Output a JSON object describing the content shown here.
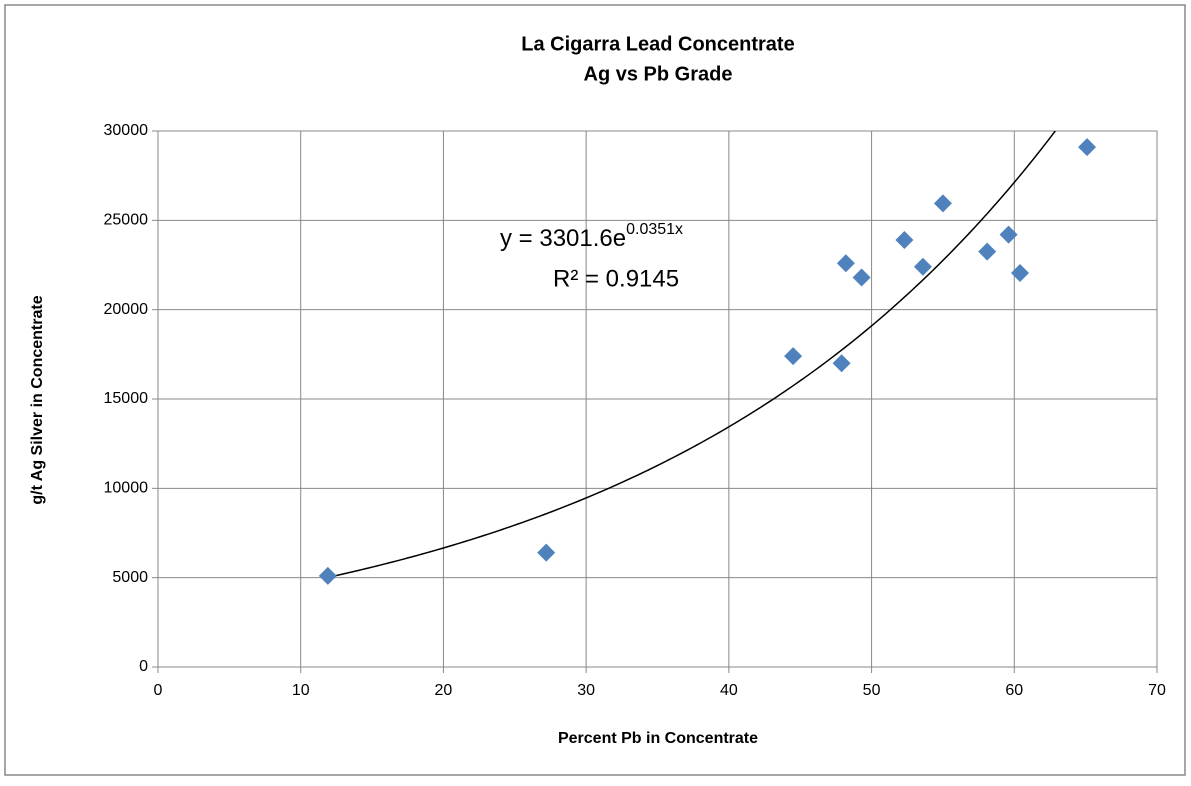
{
  "chart_data": {
    "type": "scatter",
    "title": "La Cigarra Lead Concentrate",
    "subtitle": "Ag vs Pb Grade",
    "x_label": "Percent Pb in Concentrate",
    "y_label": "g/t Ag Silver in Concentrate",
    "xlim": [
      0,
      70
    ],
    "xticks": [
      0,
      10,
      20,
      30,
      40,
      50,
      60,
      70
    ],
    "ylim": [
      0,
      30000
    ],
    "yticks": [
      0,
      5000,
      10000,
      15000,
      20000,
      25000,
      30000
    ],
    "grid": true,
    "series": [
      {
        "color": "#4f81bd",
        "x": [
          11.9,
          27.2,
          44.5,
          47.9,
          48.2,
          49.3,
          52.3,
          53.6,
          55.0,
          58.1,
          59.6,
          60.4,
          65.1
        ],
        "values": [
          5100,
          6400,
          17400,
          17000,
          22600,
          21800,
          23900,
          22400,
          25950,
          23250,
          24200,
          22050,
          29100
        ]
      }
    ],
    "trendline": {
      "type": "exponential",
      "a": 3301.6,
      "b": 0.0351,
      "color": "#000000"
    },
    "equation": "y = 3301.6e",
    "equation_exponent": "0.0351x",
    "r_squared_label": "R² = 0.9145"
  }
}
